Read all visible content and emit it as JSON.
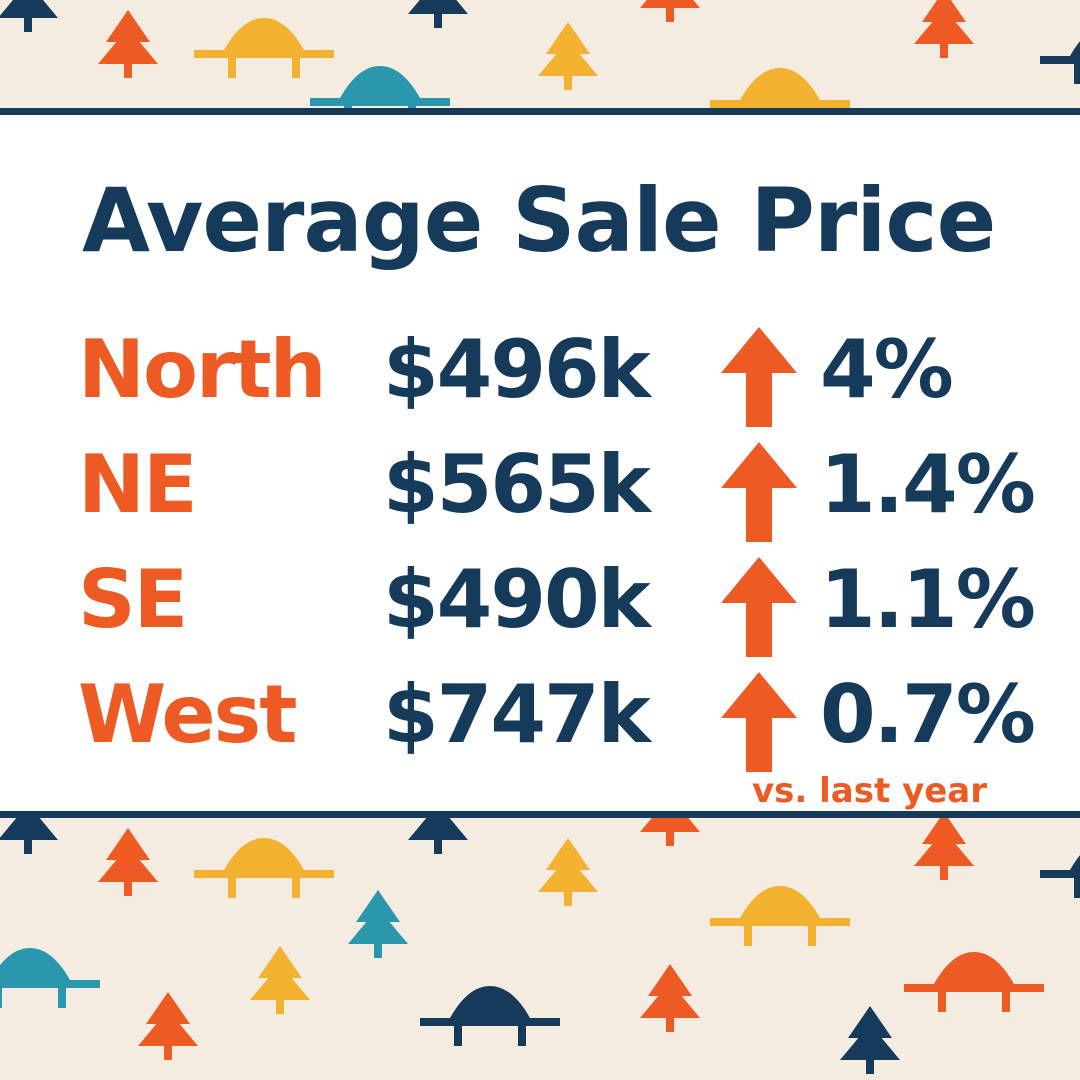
{
  "title": "Average Sale Price",
  "rows": [
    {
      "region": "North",
      "price": "$496k",
      "trend": "up",
      "change": "4%"
    },
    {
      "region": "NE",
      "price": "$565k",
      "trend": "up",
      "change": "1.4%"
    },
    {
      "region": "SE",
      "price": "$490k",
      "trend": "up",
      "change": "1.1%"
    },
    {
      "region": "West",
      "price": "$747k",
      "trend": "up",
      "change": "0.7%"
    }
  ],
  "footnote": "vs.  last year",
  "colors": {
    "navy": "#163a5a",
    "orange": "#ee5a24",
    "yellow": "#f2b12e",
    "teal": "#2a97ac",
    "background": "#f5ece1"
  },
  "icons": [
    "pine-tree-icon",
    "bridge-icon",
    "arrow-up-icon"
  ]
}
